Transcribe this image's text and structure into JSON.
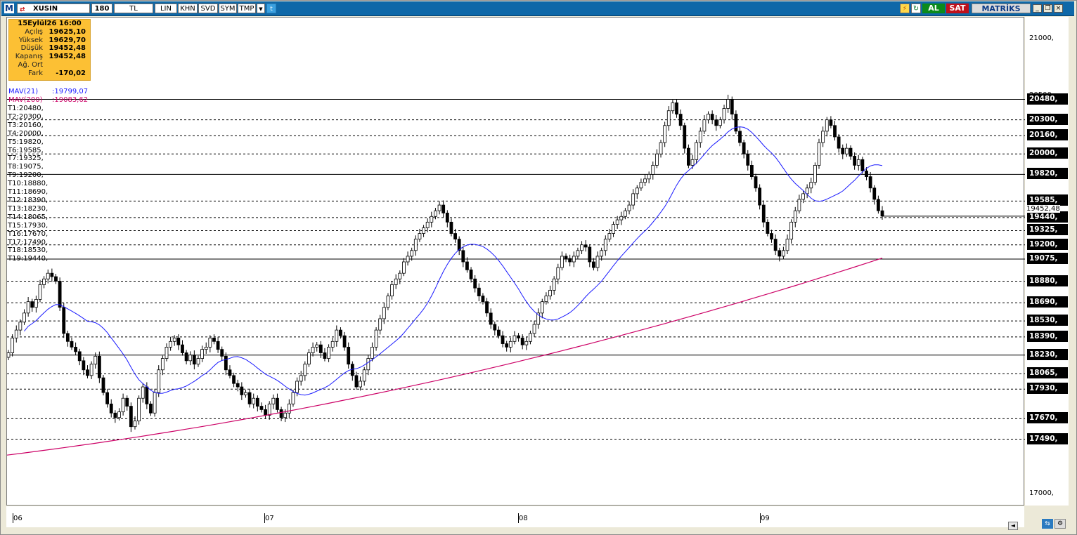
{
  "toolbar": {
    "logo": "M",
    "symbol": "XUSIN",
    "period": "180",
    "currency": "TL",
    "scale": "LIN",
    "buttons": [
      "KHN",
      "SVD",
      "SYM",
      "TMP"
    ],
    "buy_label": "AL",
    "sell_label": "SAT",
    "brand": "MATRİKS"
  },
  "info_box": {
    "date": "15Eylül26 16:00",
    "rows": [
      {
        "label": "Açılış",
        "value": "19625,10"
      },
      {
        "label": "Yüksek",
        "value": "19629,70"
      },
      {
        "label": "Düşük",
        "value": "19452,48"
      },
      {
        "label": "Kapanış",
        "value": "19452,48"
      },
      {
        "label": "Ağ. Ort",
        "value": ""
      },
      {
        "label": "Fark",
        "value": "-170,02"
      }
    ]
  },
  "indicators": {
    "mav21": {
      "label": "MAV(21)",
      "value": ":19799,07",
      "color": "#1a1aff"
    },
    "mav200": {
      "label": "MAV(200)",
      "value": ":19083,62",
      "color": "#cc0066"
    }
  },
  "levels": [
    "T1:20480,",
    "T2:20300,",
    "T3:20160,",
    "T4:20000,",
    "T5:19820,",
    "T6:19585,",
    "T7:19325,",
    "T8:19075,",
    "T9:19200,",
    "T10:18880,",
    "T11:18690,",
    "T12:18390,",
    "T13:18230,",
    "T14:18065,",
    "T15:17930,",
    "T16:17670,",
    "T17:17490,",
    "T18:18530,",
    "T19:19440,"
  ],
  "y_axis": {
    "ticks": [
      "21000,",
      "20500,",
      "20000,",
      "17500,",
      "17000,"
    ],
    "level_boxes": [
      "20480,",
      "20300,",
      "20160,",
      "20000,",
      "19820,",
      "19585,",
      "19440,",
      "19325,",
      "19200,",
      "19075,",
      "18880,",
      "18690,",
      "18530,",
      "18390,",
      "18230,",
      "18065,",
      "17930,",
      "17670,",
      "17490,"
    ],
    "last_price": "19452,48"
  },
  "x_axis": {
    "labels": [
      "06",
      "07",
      "08",
      "09"
    ]
  },
  "chart_data": {
    "type": "candlestick",
    "symbol": "XUSIN",
    "ylim": [
      16900,
      21200
    ],
    "x_labels": [
      "06",
      "07",
      "08",
      "09"
    ],
    "horizontal_levels": [
      20480,
      20300,
      20160,
      20000,
      19820,
      19585,
      19440,
      19325,
      19200,
      19075,
      18880,
      18690,
      18530,
      18390,
      18230,
      18065,
      17930,
      17670,
      17490
    ],
    "solid_levels": [
      20480,
      19820,
      19075,
      18230
    ],
    "last_close": 19452.48,
    "closes": [
      18250,
      18380,
      18450,
      18520,
      18600,
      18700,
      18650,
      18720,
      18850,
      18900,
      18950,
      18920,
      18880,
      18650,
      18420,
      18350,
      18300,
      18260,
      18180,
      18100,
      18050,
      18150,
      18220,
      18030,
      17900,
      17800,
      17720,
      17680,
      17730,
      17850,
      17780,
      17600,
      17650,
      17850,
      17950,
      17800,
      17720,
      17900,
      18100,
      18200,
      18300,
      18350,
      18380,
      18320,
      18250,
      18180,
      18230,
      18150,
      18200,
      18280,
      18300,
      18380,
      18350,
      18280,
      18220,
      18100,
      18050,
      17980,
      17950,
      17880,
      17900,
      17800,
      17850,
      17780,
      17750,
      17700,
      17800,
      17850,
      17750,
      17680,
      17720,
      17800,
      17900,
      18000,
      18050,
      18150,
      18250,
      18300,
      18320,
      18250,
      18200,
      18300,
      18350,
      18450,
      18400,
      18300,
      18150,
      18050,
      17950,
      18000,
      18100,
      18200,
      18300,
      18450,
      18550,
      18650,
      18750,
      18850,
      18900,
      18950,
      19050,
      19100,
      19150,
      19250,
      19300,
      19350,
      19400,
      19450,
      19500,
      19550,
      19480,
      19400,
      19300,
      19250,
      19150,
      19050,
      18980,
      18900,
      18820,
      18750,
      18700,
      18600,
      18500,
      18450,
      18400,
      18330,
      18300,
      18350,
      18400,
      18380,
      18320,
      18350,
      18420,
      18500,
      18600,
      18700,
      18750,
      18800,
      18900,
      19000,
      19100,
      19080,
      19050,
      19100,
      19150,
      19200,
      19180,
      19050,
      19000,
      19100,
      19150,
      19250,
      19300,
      19380,
      19420,
      19450,
      19500,
      19550,
      19650,
      19700,
      19750,
      19780,
      19820,
      19900,
      20000,
      20100,
      20250,
      20380,
      20450,
      20350,
      20250,
      20050,
      19900,
      19950,
      20100,
      20200,
      20300,
      20350,
      20300,
      20250,
      20300,
      20400,
      20480,
      20350,
      20200,
      20100,
      20000,
      19900,
      19800,
      19700,
      19550,
      19400,
      19300,
      19250,
      19150,
      19100,
      19150,
      19250,
      19400,
      19500,
      19600,
      19650,
      19700,
      19750,
      19900,
      20100,
      20200,
      20300,
      20250,
      20150,
      20050,
      20000,
      20050,
      19980,
      19900,
      19950,
      19850,
      19800,
      19700,
      19600,
      19500,
      19452.48
    ],
    "series": [
      {
        "name": "MAV(21)",
        "color": "#1a1aff",
        "last": 19799.07
      },
      {
        "name": "MAV(200)",
        "color": "#cc0066",
        "last": 19083.62
      }
    ]
  }
}
